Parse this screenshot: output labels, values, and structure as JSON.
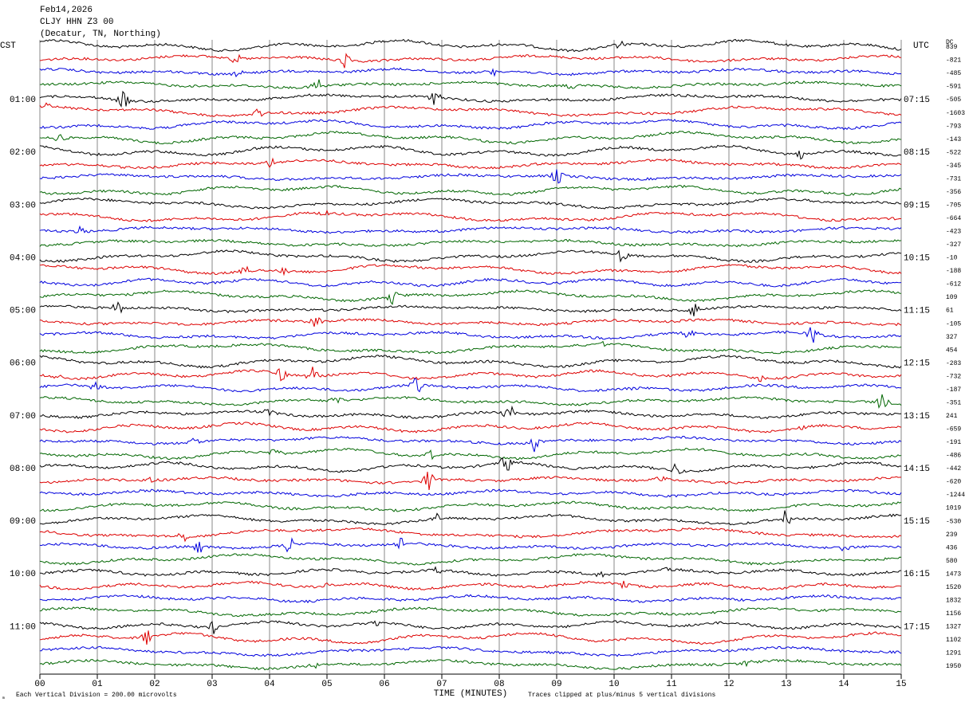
{
  "header": {
    "lines": [
      "Feb14,2026",
      "CLJY HHN Z3 00",
      "(Decatur, TN, Northing)"
    ]
  },
  "left_labels": {
    "corner": "CST",
    "times": [
      "01:00",
      "02:00",
      "03:00",
      "04:00",
      "05:00",
      "06:00",
      "07:00",
      "08:00",
      "09:00",
      "10:00",
      "11:00"
    ]
  },
  "right_labels": {
    "corner": "UTC",
    "times": [
      "07:15",
      "08:15",
      "09:15",
      "10:15",
      "11:15",
      "12:15",
      "13:15",
      "14:15",
      "15:15",
      "16:15",
      "17:15"
    ]
  },
  "dc": {
    "header": "DC",
    "values": [
      "839",
      "-821",
      "-485",
      "-591",
      "-505",
      "-1603",
      "-793",
      "-143",
      "-522",
      "-345",
      "-731",
      "-356",
      "-705",
      "-664",
      "-423",
      "-327",
      "-10",
      "-188",
      "-612",
      "109",
      "61",
      "-105",
      "327",
      "454",
      "-283",
      "-732",
      "-187",
      "-351",
      "241",
      "-659",
      "-191",
      "-486",
      "-442",
      "-620",
      "-1244",
      "1019",
      "-530",
      "239",
      "436",
      "580",
      "1473",
      "1520",
      "1832",
      "1156",
      "1327",
      "1102",
      "1291",
      "1950"
    ]
  },
  "x_axis": {
    "labels": [
      "00",
      "01",
      "02",
      "03",
      "04",
      "05",
      "06",
      "07",
      "08",
      "09",
      "10",
      "11",
      "12",
      "13",
      "14",
      "15"
    ],
    "title": "TIME (MINUTES)"
  },
  "footer": {
    "scale": "Each Vertical Division =  200.00 microvolts",
    "clip": "Traces clipped at plus/minus 5 vertical divisions"
  }
}
